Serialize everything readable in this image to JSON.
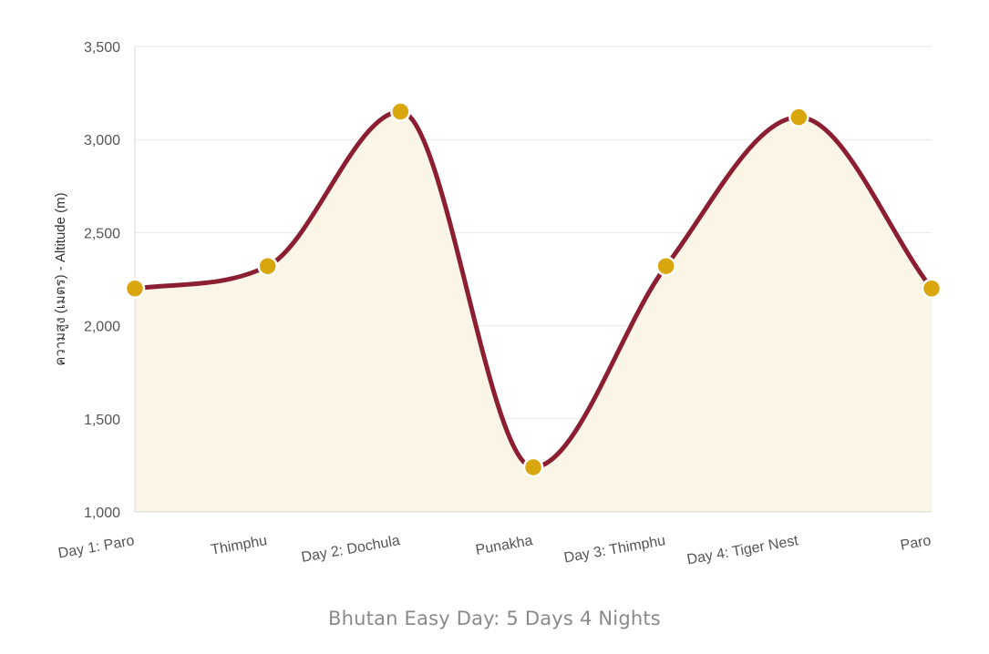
{
  "chart_data": {
    "type": "area",
    "categories": [
      "Day 1: Paro",
      "Thimphu",
      "Day 2: Dochula",
      "Punakha",
      "Day 3: Thimphu",
      "Day 4: Tiger Nest",
      "Paro"
    ],
    "series": [
      {
        "values": [
          2200,
          2320,
          3150,
          1240,
          2320,
          3120,
          2200
        ]
      }
    ],
    "ylabel": "ความสูง (เมตร) - Altitude (m)",
    "xlabel": "",
    "ylim": [
      1000,
      3500
    ],
    "yticks": [
      1000,
      1500,
      2000,
      2500,
      3000,
      3500
    ],
    "ytick_labels": [
      "1,000",
      "1,500",
      "2,000",
      "2,500",
      "3,000",
      "3,500"
    ],
    "caption": "Bhutan Easy Day: 5 Days 4 Nights",
    "grid": true,
    "colors": {
      "line": "#8b1f31",
      "fill": "#fbf5e6",
      "marker": "#d9a70d",
      "marker_stroke": "#ffffff"
    }
  }
}
